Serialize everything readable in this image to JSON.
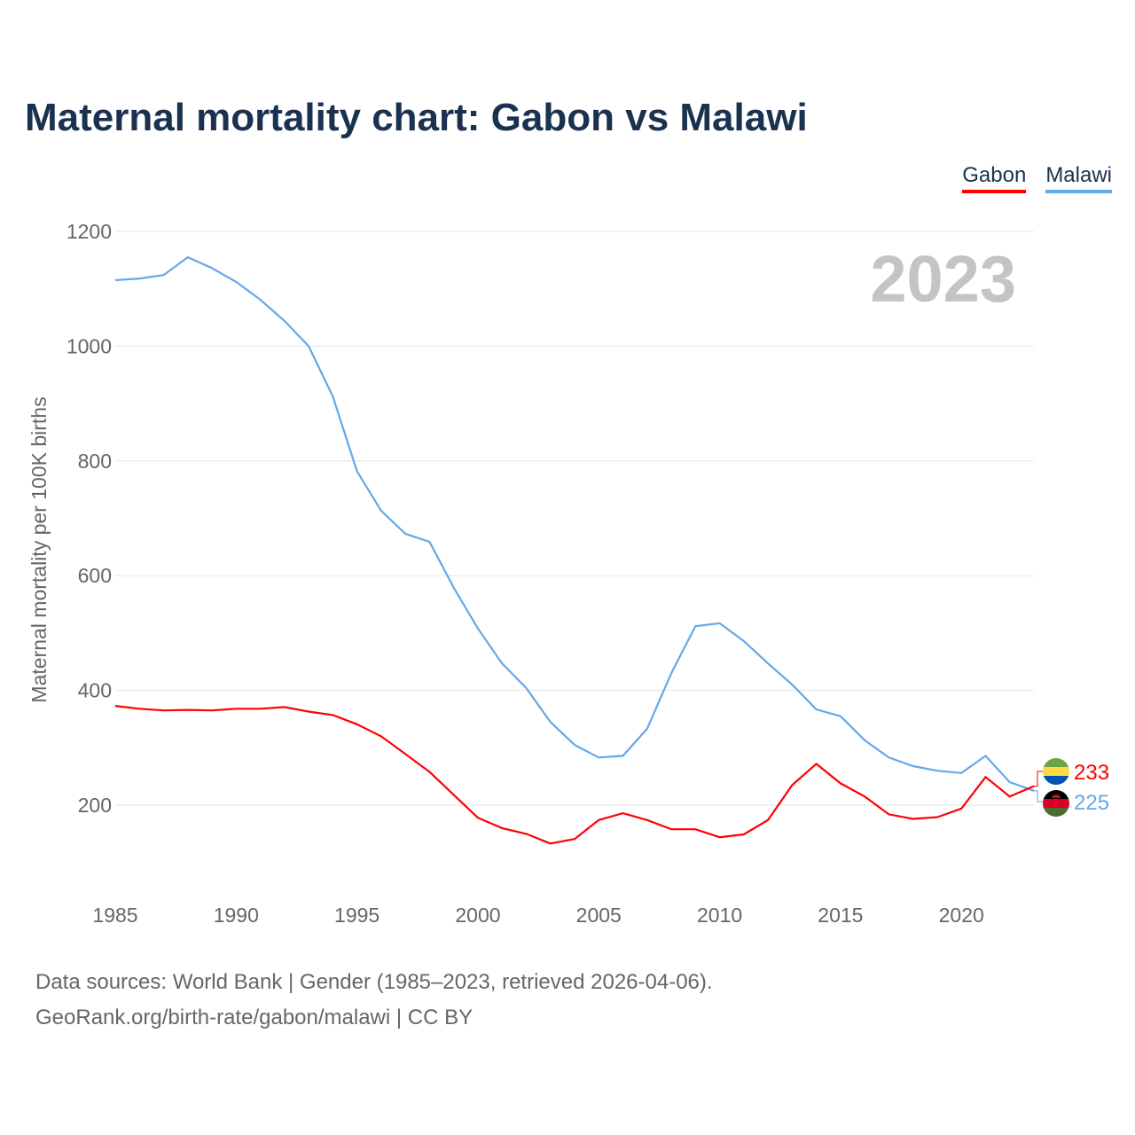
{
  "title": "Maternal mortality chart: Gabon vs Malawi",
  "source_line1": "Data sources: World Bank | Gender (1985–2023, retrieved 2026-04-06).",
  "source_line2": "GeoRank.org/birth-rate/gabon/malawi | CC BY",
  "chart_data": {
    "type": "line",
    "title": "Maternal mortality chart: Gabon vs Malawi",
    "ylabel": "Maternal mortality per 100K births",
    "xlabel": "",
    "year_watermark": "2023",
    "ylim": [
      0,
      1200
    ],
    "xlim": [
      1985,
      2023
    ],
    "yticks": [
      200,
      400,
      600,
      800,
      1000,
      1200
    ],
    "xticks": [
      1985,
      1990,
      1995,
      2000,
      2005,
      2010,
      2015,
      2020
    ],
    "legend_position": "top-right",
    "grid": true,
    "x": [
      1985,
      1986,
      1987,
      1988,
      1989,
      1990,
      1991,
      1992,
      1993,
      1994,
      1995,
      1996,
      1997,
      1998,
      1999,
      2000,
      2001,
      2002,
      2003,
      2004,
      2005,
      2006,
      2007,
      2008,
      2009,
      2010,
      2011,
      2012,
      2013,
      2014,
      2015,
      2016,
      2017,
      2018,
      2019,
      2020,
      2021,
      2022,
      2023
    ],
    "series": [
      {
        "name": "Gabon",
        "color": "#ff0000",
        "end_label": "233",
        "values": [
          373,
          368,
          365,
          366,
          365,
          368,
          368,
          371,
          363,
          357,
          341,
          320,
          289,
          258,
          218,
          178,
          160,
          150,
          133,
          141,
          174,
          186,
          174,
          158,
          158,
          144,
          149,
          174,
          235,
          272,
          238,
          215,
          184,
          176,
          179,
          194,
          249,
          215,
          233
        ]
      },
      {
        "name": "Malawi",
        "color": "#62a8ea",
        "end_label": "225",
        "values": [
          1115,
          1118,
          1124,
          1155,
          1136,
          1112,
          1081,
          1044,
          1000,
          912,
          782,
          713,
          673,
          659,
          579,
          508,
          447,
          404,
          345,
          305,
          283,
          286,
          333,
          430,
          512,
          517,
          486,
          447,
          410,
          367,
          355,
          313,
          283,
          268,
          260,
          256,
          286,
          240,
          225
        ]
      }
    ]
  }
}
